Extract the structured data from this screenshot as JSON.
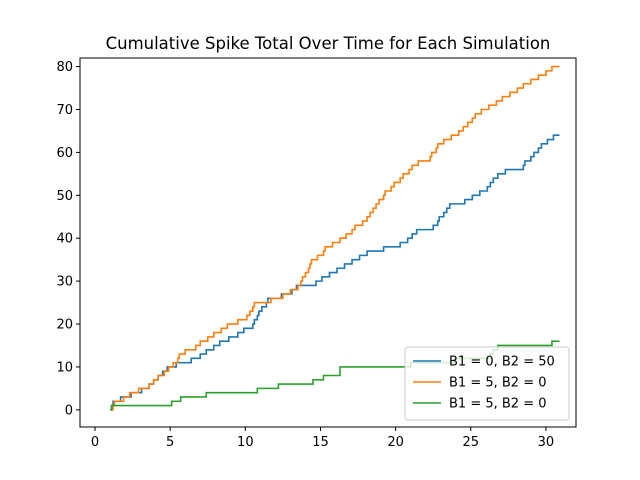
{
  "chart_data": {
    "type": "line",
    "title": "Cumulative Spike Total Over Time for Each Simulation",
    "xlabel": "",
    "ylabel": "",
    "xlim": [
      -1,
      32
    ],
    "ylim": [
      -4,
      82
    ],
    "xticks": [
      0,
      5,
      10,
      15,
      20,
      25,
      30
    ],
    "yticks": [
      0,
      10,
      20,
      30,
      40,
      50,
      60,
      70,
      80
    ],
    "grid": false,
    "legend_position": "lower-right",
    "step": "post",
    "series": [
      {
        "name": "B1 = 0, B2 = 50",
        "color": "#1f77b4",
        "points": [
          [
            1.0,
            0
          ],
          [
            1.1,
            1
          ],
          [
            1.2,
            2
          ],
          [
            1.6,
            2
          ],
          [
            1.7,
            3
          ],
          [
            2.3,
            3
          ],
          [
            2.4,
            4
          ],
          [
            3.0,
            4
          ],
          [
            3.1,
            5
          ],
          [
            3.5,
            5
          ],
          [
            3.6,
            6
          ],
          [
            3.8,
            6
          ],
          [
            3.9,
            7
          ],
          [
            4.1,
            7
          ],
          [
            4.2,
            8
          ],
          [
            4.4,
            8
          ],
          [
            4.5,
            9
          ],
          [
            4.7,
            9
          ],
          [
            4.8,
            10
          ],
          [
            5.3,
            10
          ],
          [
            5.4,
            11
          ],
          [
            6.3,
            11
          ],
          [
            6.4,
            12
          ],
          [
            6.9,
            12
          ],
          [
            7.0,
            13
          ],
          [
            7.3,
            13
          ],
          [
            7.4,
            14
          ],
          [
            7.8,
            14
          ],
          [
            7.9,
            15
          ],
          [
            8.2,
            15
          ],
          [
            8.3,
            16
          ],
          [
            8.8,
            16
          ],
          [
            8.9,
            17
          ],
          [
            9.4,
            17
          ],
          [
            9.5,
            18
          ],
          [
            9.8,
            18
          ],
          [
            9.9,
            19
          ],
          [
            10.4,
            19
          ],
          [
            10.5,
            20
          ],
          [
            10.6,
            21
          ],
          [
            10.8,
            22
          ],
          [
            10.9,
            23
          ],
          [
            11.1,
            24
          ],
          [
            11.4,
            25
          ],
          [
            11.5,
            26
          ],
          [
            12.3,
            26
          ],
          [
            12.4,
            27
          ],
          [
            13.0,
            27
          ],
          [
            13.1,
            28
          ],
          [
            13.3,
            28
          ],
          [
            13.4,
            29
          ],
          [
            14.6,
            29
          ],
          [
            14.7,
            30
          ],
          [
            15.0,
            30
          ],
          [
            15.1,
            31
          ],
          [
            15.5,
            31
          ],
          [
            15.6,
            32
          ],
          [
            16.0,
            32
          ],
          [
            16.1,
            33
          ],
          [
            16.5,
            33
          ],
          [
            16.6,
            34
          ],
          [
            17.0,
            34
          ],
          [
            17.1,
            35
          ],
          [
            17.5,
            35
          ],
          [
            17.6,
            36
          ],
          [
            18.0,
            36
          ],
          [
            18.1,
            37
          ],
          [
            19.1,
            37
          ],
          [
            19.2,
            38
          ],
          [
            20.2,
            38
          ],
          [
            20.3,
            39
          ],
          [
            20.7,
            39
          ],
          [
            20.8,
            40
          ],
          [
            21.0,
            40
          ],
          [
            21.1,
            41
          ],
          [
            21.3,
            41
          ],
          [
            21.4,
            42
          ],
          [
            22.4,
            42
          ],
          [
            22.5,
            43
          ],
          [
            22.7,
            43
          ],
          [
            22.8,
            44
          ],
          [
            22.9,
            45
          ],
          [
            23.1,
            45
          ],
          [
            23.2,
            46
          ],
          [
            23.4,
            47
          ],
          [
            23.5,
            47
          ],
          [
            23.6,
            48
          ],
          [
            24.5,
            48
          ],
          [
            24.6,
            49
          ],
          [
            25.0,
            49
          ],
          [
            25.1,
            50
          ],
          [
            25.5,
            50
          ],
          [
            25.6,
            51
          ],
          [
            26.0,
            51
          ],
          [
            26.1,
            52
          ],
          [
            26.3,
            53
          ],
          [
            26.5,
            54
          ],
          [
            26.7,
            54
          ],
          [
            26.8,
            55
          ],
          [
            27.2,
            55
          ],
          [
            27.3,
            56
          ],
          [
            28.4,
            56
          ],
          [
            28.5,
            57
          ],
          [
            28.6,
            58
          ],
          [
            28.9,
            58
          ],
          [
            29.0,
            59
          ],
          [
            29.2,
            60
          ],
          [
            29.4,
            60
          ],
          [
            29.5,
            61
          ],
          [
            29.7,
            62
          ],
          [
            30.0,
            62
          ],
          [
            30.1,
            63
          ],
          [
            30.4,
            63
          ],
          [
            30.5,
            64
          ],
          [
            30.9,
            64
          ]
        ]
      },
      {
        "name": "B1 = 5, B2 = 0",
        "color": "#ff7f0e",
        "points": [
          [
            1.0,
            0
          ],
          [
            1.2,
            1
          ],
          [
            1.3,
            2
          ],
          [
            1.8,
            2
          ],
          [
            1.9,
            3
          ],
          [
            2.2,
            3
          ],
          [
            2.3,
            4
          ],
          [
            2.8,
            4
          ],
          [
            2.9,
            5
          ],
          [
            3.5,
            5
          ],
          [
            3.6,
            6
          ],
          [
            3.8,
            6
          ],
          [
            3.9,
            7
          ],
          [
            4.1,
            7
          ],
          [
            4.2,
            8
          ],
          [
            4.5,
            8
          ],
          [
            4.6,
            9
          ],
          [
            4.8,
            9
          ],
          [
            4.9,
            10
          ],
          [
            5.1,
            10
          ],
          [
            5.2,
            11
          ],
          [
            5.4,
            11
          ],
          [
            5.5,
            12
          ],
          [
            5.6,
            13
          ],
          [
            5.9,
            13
          ],
          [
            6.0,
            14
          ],
          [
            6.6,
            14
          ],
          [
            6.7,
            15
          ],
          [
            6.9,
            15
          ],
          [
            7.0,
            16
          ],
          [
            7.4,
            16
          ],
          [
            7.5,
            17
          ],
          [
            7.8,
            17
          ],
          [
            7.9,
            18
          ],
          [
            8.3,
            18
          ],
          [
            8.4,
            19
          ],
          [
            8.7,
            19
          ],
          [
            8.8,
            20
          ],
          [
            9.4,
            20
          ],
          [
            9.5,
            21
          ],
          [
            10.0,
            21
          ],
          [
            10.1,
            22
          ],
          [
            10.3,
            23
          ],
          [
            10.5,
            24
          ],
          [
            10.6,
            25
          ],
          [
            11.6,
            25
          ],
          [
            11.7,
            26
          ],
          [
            12.4,
            26
          ],
          [
            12.5,
            27
          ],
          [
            12.9,
            27
          ],
          [
            13.0,
            28
          ],
          [
            13.4,
            28
          ],
          [
            13.5,
            29
          ],
          [
            13.7,
            30
          ],
          [
            13.8,
            31
          ],
          [
            14.0,
            32
          ],
          [
            14.2,
            33
          ],
          [
            14.3,
            34
          ],
          [
            14.4,
            35
          ],
          [
            14.7,
            35
          ],
          [
            14.8,
            36
          ],
          [
            15.1,
            36
          ],
          [
            15.2,
            37
          ],
          [
            15.3,
            38
          ],
          [
            15.7,
            38
          ],
          [
            15.8,
            39
          ],
          [
            16.2,
            39
          ],
          [
            16.3,
            40
          ],
          [
            16.6,
            40
          ],
          [
            16.7,
            41
          ],
          [
            17.0,
            41
          ],
          [
            17.1,
            42
          ],
          [
            17.3,
            43
          ],
          [
            17.7,
            43
          ],
          [
            17.8,
            44
          ],
          [
            18.0,
            44
          ],
          [
            18.1,
            45
          ],
          [
            18.3,
            46
          ],
          [
            18.5,
            47
          ],
          [
            18.7,
            48
          ],
          [
            18.9,
            49
          ],
          [
            19.1,
            49
          ],
          [
            19.2,
            50
          ],
          [
            19.3,
            51
          ],
          [
            19.6,
            51
          ],
          [
            19.7,
            52
          ],
          [
            19.9,
            53
          ],
          [
            20.2,
            53
          ],
          [
            20.3,
            54
          ],
          [
            20.5,
            55
          ],
          [
            20.8,
            55
          ],
          [
            20.9,
            56
          ],
          [
            21.1,
            57
          ],
          [
            21.4,
            57
          ],
          [
            21.5,
            58
          ],
          [
            22.2,
            58
          ],
          [
            22.3,
            59
          ],
          [
            22.4,
            60
          ],
          [
            22.6,
            60
          ],
          [
            22.7,
            61
          ],
          [
            22.8,
            62
          ],
          [
            23.1,
            62
          ],
          [
            23.2,
            63
          ],
          [
            23.6,
            63
          ],
          [
            23.7,
            64
          ],
          [
            24.1,
            64
          ],
          [
            24.2,
            65
          ],
          [
            24.4,
            65
          ],
          [
            24.5,
            66
          ],
          [
            24.7,
            66
          ],
          [
            24.8,
            67
          ],
          [
            25.0,
            67
          ],
          [
            25.1,
            68
          ],
          [
            25.3,
            69
          ],
          [
            25.6,
            69
          ],
          [
            25.7,
            70
          ],
          [
            26.1,
            70
          ],
          [
            26.2,
            71
          ],
          [
            26.6,
            71
          ],
          [
            26.7,
            72
          ],
          [
            27.0,
            72
          ],
          [
            27.1,
            73
          ],
          [
            27.5,
            73
          ],
          [
            27.6,
            74
          ],
          [
            28.0,
            74
          ],
          [
            28.1,
            75
          ],
          [
            28.4,
            75
          ],
          [
            28.5,
            76
          ],
          [
            28.9,
            76
          ],
          [
            29.0,
            77
          ],
          [
            29.4,
            77
          ],
          [
            29.5,
            78
          ],
          [
            29.9,
            78
          ],
          [
            30.0,
            79
          ],
          [
            30.3,
            79
          ],
          [
            30.4,
            80
          ],
          [
            30.9,
            80
          ]
        ]
      },
      {
        "name": "B1 = 5, B2 = 0",
        "color": "#2ca02c",
        "points": [
          [
            1.0,
            0
          ],
          [
            1.1,
            1
          ],
          [
            5.0,
            1
          ],
          [
            5.1,
            2
          ],
          [
            5.6,
            2
          ],
          [
            5.7,
            3
          ],
          [
            7.3,
            3
          ],
          [
            7.4,
            4
          ],
          [
            10.7,
            4
          ],
          [
            10.8,
            5
          ],
          [
            12.1,
            5
          ],
          [
            12.2,
            6
          ],
          [
            14.4,
            6
          ],
          [
            14.5,
            7
          ],
          [
            15.1,
            7
          ],
          [
            15.2,
            8
          ],
          [
            16.2,
            8
          ],
          [
            16.3,
            10
          ],
          [
            20.9,
            10
          ],
          [
            21.0,
            11
          ],
          [
            23.8,
            11
          ],
          [
            23.9,
            12
          ],
          [
            26.2,
            12
          ],
          [
            26.3,
            13
          ],
          [
            26.5,
            14
          ],
          [
            26.7,
            14
          ],
          [
            26.8,
            15
          ],
          [
            30.3,
            15
          ],
          [
            30.4,
            16
          ],
          [
            30.9,
            16
          ]
        ]
      }
    ]
  }
}
